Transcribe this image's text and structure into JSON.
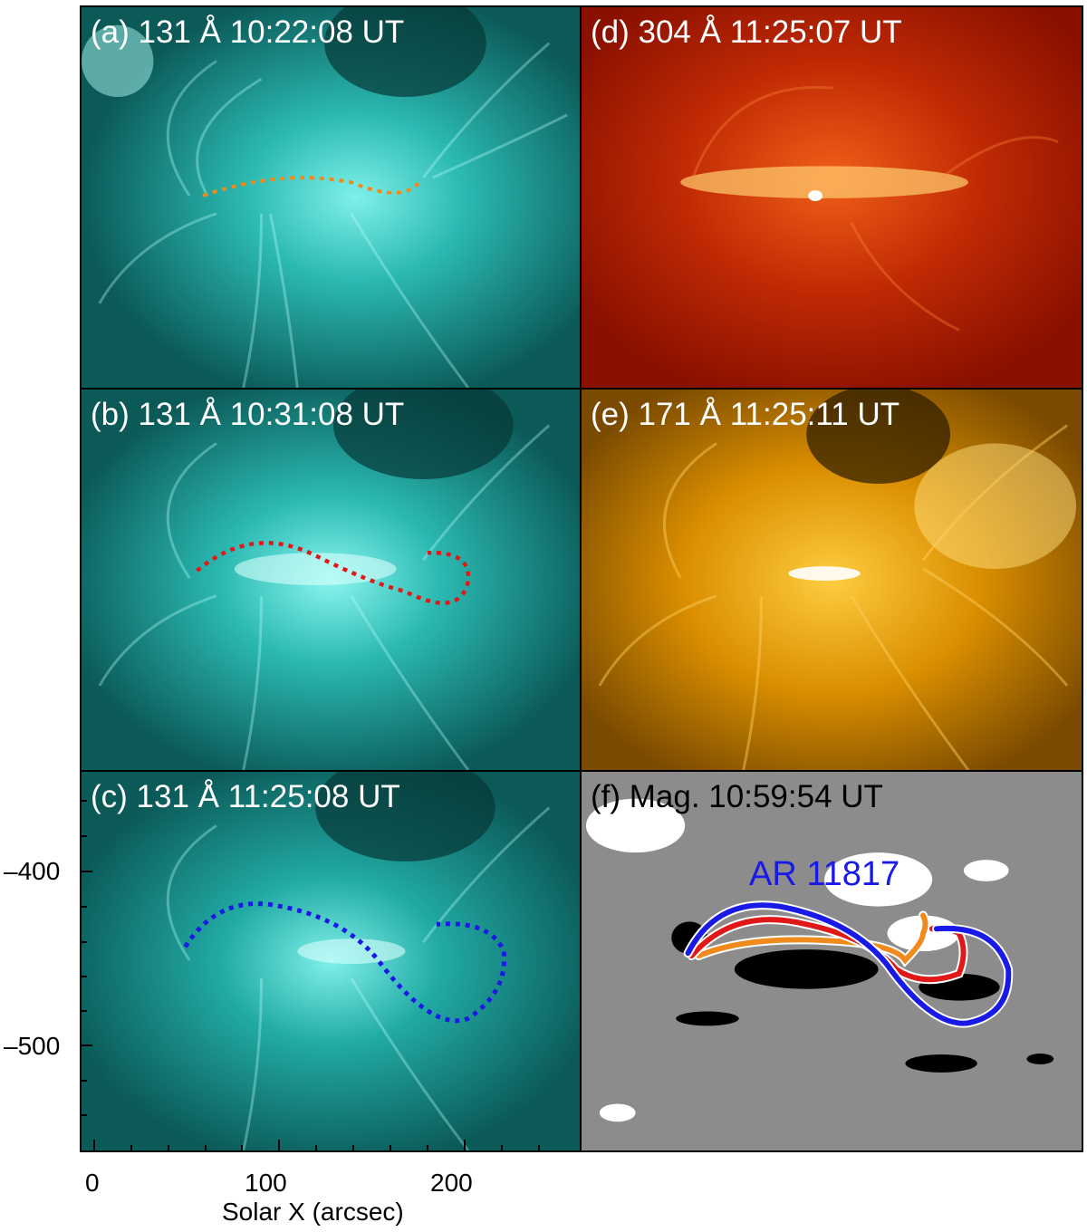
{
  "panels": {
    "a": {
      "label": "(a) 131 Å 10:22:08 UT"
    },
    "b": {
      "label": "(b) 131 Å 10:31:08 UT"
    },
    "c": {
      "label": "(c) 131 Å 11:25:08 UT"
    },
    "d": {
      "label": "(d) 304 Å 11:25:07 UT"
    },
    "e": {
      "label": "(e) 171 Å 11:25:11 UT"
    },
    "f": {
      "label": "(f) Mag. 10:59:54 UT",
      "annotation": "AR 11817"
    }
  },
  "axes": {
    "xlabel": "Solar X (arcsec)",
    "xticks": [
      "0",
      "100",
      "200"
    ],
    "yticks": [
      "–400",
      "–500"
    ]
  },
  "colors": {
    "aia131": "#11c4c0",
    "aia304": "#b01800",
    "aia171": "#d98e00",
    "curve_a": "#f08a1c",
    "curve_b": "#e01818",
    "curve_c": "#1a1ae6",
    "ar_label": "#1a1ae6"
  }
}
